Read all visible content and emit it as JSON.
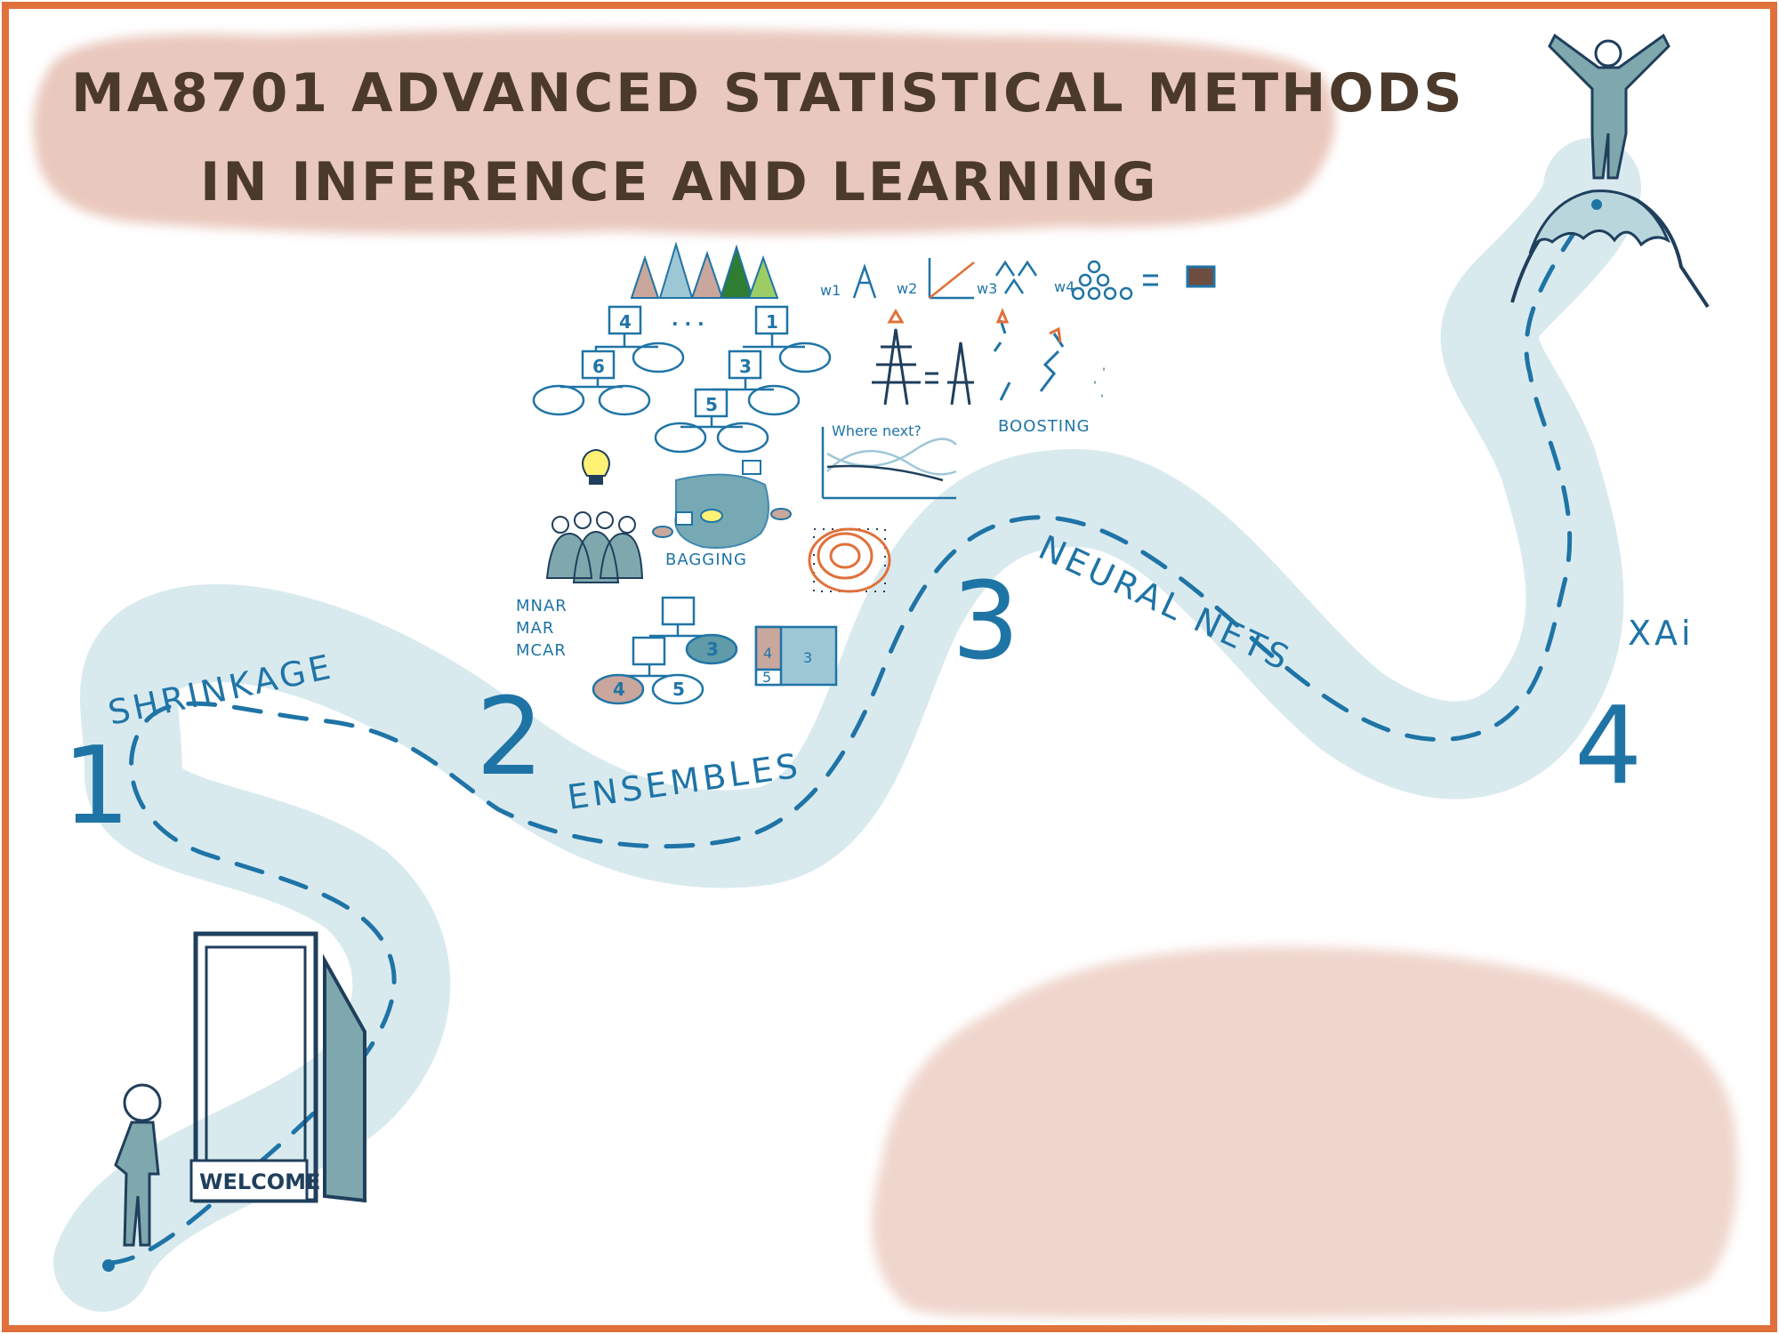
{
  "title": {
    "line1": "MA8701 ADVANCED STATISTICAL METHODS",
    "line2": "IN INFERENCE AND LEARNING"
  },
  "stages": [
    {
      "number": "1",
      "label": "SHRINKAGE"
    },
    {
      "number": "2",
      "label": "ENSEMBLES"
    },
    {
      "number": "3",
      "label": "NEURAL NETS"
    },
    {
      "number": "4",
      "label": "XAi"
    }
  ],
  "door_sign": "WELCOME",
  "sketch_labels": {
    "bagging": "BAGGING",
    "boosting": "BOOSTING",
    "where_next": "Where next?",
    "missing_1": "MNAR",
    "missing_2": "MAR",
    "missing_3": "MCAR",
    "dots": ". . .",
    "weights": [
      "w1",
      "w2",
      "w3",
      "w4"
    ]
  },
  "tree_boxes": {
    "top_left": "4",
    "top_right": "1",
    "mid_left": "6",
    "mid_right": "3",
    "bottom": "5",
    "bag_nodes": [
      "4",
      "5",
      "4",
      "5"
    ],
    "missing_tree": [
      "3",
      "4",
      "5"
    ],
    "partition": [
      "4",
      "3",
      "5"
    ]
  },
  "colors": {
    "frame": "#e0703a",
    "path": "#d7e9ee",
    "ink": "#1f74a6",
    "title_wash": "#e6bfb2",
    "title_ink": "#4b3a2c",
    "cloud": "#eed2c8"
  }
}
